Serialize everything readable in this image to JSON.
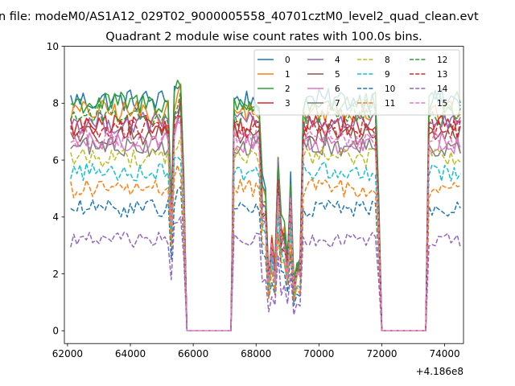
{
  "chart_data": {
    "type": "line",
    "suptitle": "n file: modeM0/AS1A12_029T02_9000005558_40701cztM0_level2_quad_clean.evt",
    "title": "Quadrant 2 module wise count rates with 100.0s bins.",
    "xlabel": "",
    "ylabel": "",
    "x_offset_label": "+4.186e8",
    "xlim": [
      61900,
      74600
    ],
    "ylim": [
      -0.45,
      10
    ],
    "x_ticks": [
      62000,
      64000,
      66000,
      68000,
      70000,
      72000,
      74000
    ],
    "x_tick_labels": [
      "62000",
      "64000",
      "66000",
      "68000",
      "70000",
      "72000",
      "74000"
    ],
    "y_ticks": [
      0,
      2,
      4,
      6,
      8,
      10
    ],
    "y_tick_labels": [
      "0",
      "2",
      "4",
      "6",
      "8",
      "10"
    ],
    "grid": false,
    "legend_position": "top-right",
    "legend_columns": 4,
    "bin_seconds": 100,
    "segments": [
      {
        "x_start": 62100,
        "x_end": 65700
      },
      {
        "x_start": 67300,
        "x_end": 71900
      },
      {
        "x_start": 73500,
        "x_end": 74500
      }
    ],
    "series": [
      {
        "name": "0",
        "color": "#1f77b4",
        "dash": "solid",
        "mean": 8.1
      },
      {
        "name": "1",
        "color": "#ff7f0e",
        "dash": "solid",
        "mean": 7.7
      },
      {
        "name": "2",
        "color": "#2ca02c",
        "dash": "solid",
        "mean": 8.0
      },
      {
        "name": "3",
        "color": "#d62728",
        "dash": "solid",
        "mean": 7.2
      },
      {
        "name": "4",
        "color": "#9467bd",
        "dash": "solid",
        "mean": 7.3
      },
      {
        "name": "5",
        "color": "#8c564b",
        "dash": "solid",
        "mean": 6.9
      },
      {
        "name": "6",
        "color": "#e377c2",
        "dash": "solid",
        "mean": 6.6
      },
      {
        "name": "7",
        "color": "#7f7f7f",
        "dash": "solid",
        "mean": 6.5
      },
      {
        "name": "8",
        "color": "#bcbd22",
        "dash": "dashed",
        "mean": 6.1
      },
      {
        "name": "9",
        "color": "#17becf",
        "dash": "dashed",
        "mean": 5.6
      },
      {
        "name": "10",
        "color": "#1f77b4",
        "dash": "dashed",
        "mean": 4.3
      },
      {
        "name": "11",
        "color": "#ff7f0e",
        "dash": "dashed",
        "mean": 5.0
      },
      {
        "name": "12",
        "color": "#2ca02c",
        "dash": "dashed",
        "mean": 7.6
      },
      {
        "name": "13",
        "color": "#d62728",
        "dash": "dashed",
        "mean": 7.1
      },
      {
        "name": "14",
        "color": "#9467bd",
        "dash": "dashed",
        "mean": 3.2
      },
      {
        "name": "15",
        "color": "#e377c2",
        "dash": "dashed",
        "mean": 6.7
      }
    ]
  }
}
